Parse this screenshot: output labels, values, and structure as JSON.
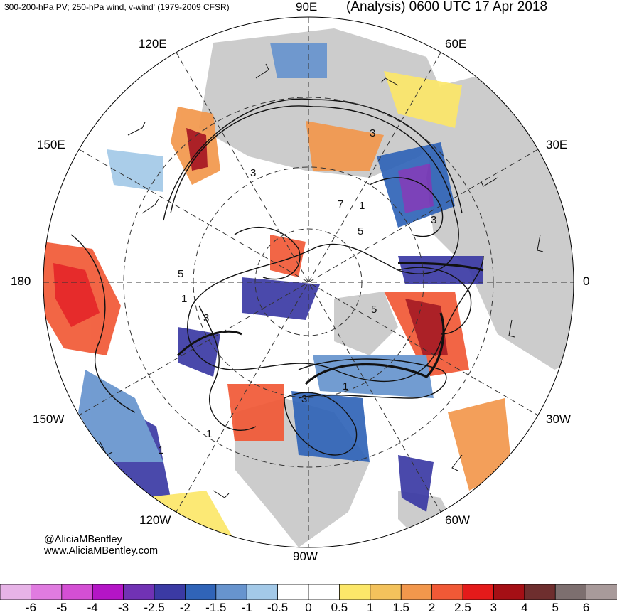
{
  "header": {
    "left_title": "300-200-hPa PV; 250-hPa wind, v-wind' (1979-2009 CFSR)",
    "right_title": "(Analysis) 0600 UTC 17 Apr 2018"
  },
  "map": {
    "projection": "north-polar-stereographic",
    "longitude_labels": {
      "lon_90e": "90E",
      "lon_60e": "60E",
      "lon_30e": "30E",
      "lon_0": "0",
      "lon_30w": "30W",
      "lon_60w": "60W",
      "lon_90w": "90W",
      "lon_120w": "120W",
      "lon_150w": "150W",
      "lon_180": "180",
      "lon_150e": "150E",
      "lon_120e": "120E"
    },
    "pv_contour_labels": [
      "3",
      "3",
      "7",
      "5",
      "5",
      "3",
      "1",
      "5",
      "1",
      "3",
      "1",
      "3",
      "1",
      "1"
    ],
    "colors": {
      "land": "#cccccc",
      "ocean": "#ffffff",
      "contour": "#111111",
      "grid": "#333333"
    }
  },
  "credits": {
    "twitter": "@AliciaMBentley",
    "website": "www.AliciaMBentley.com"
  },
  "colorbar": {
    "ticks": [
      "-6",
      "-5",
      "-4",
      "-3",
      "-2.5",
      "-2",
      "-1.5",
      "-1",
      "-0.5",
      "0",
      "0.5",
      "1",
      "1.5",
      "2",
      "2.5",
      "3",
      "4",
      "5",
      "6"
    ],
    "colors": [
      "#e7b3e7",
      "#e07be0",
      "#d44fd4",
      "#b415c6",
      "#7132b4",
      "#3b3aa4",
      "#3064b8",
      "#6794ce",
      "#a3c9e8",
      "#ffffff",
      "#ffffff",
      "#fce769",
      "#f3c25c",
      "#f2974c",
      "#f15936",
      "#e41a1a",
      "#a50f15",
      "#6e2e2e",
      "#7d6f6f",
      "#a89a9a"
    ]
  }
}
